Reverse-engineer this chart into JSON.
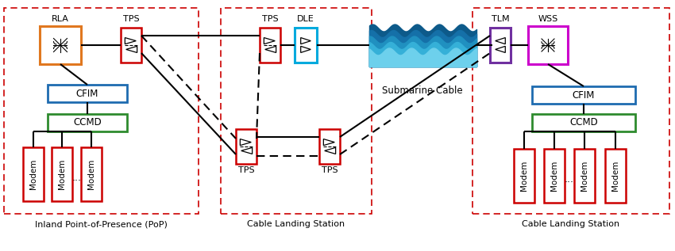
{
  "fig_width": 8.5,
  "fig_height": 3.17,
  "dpi": 100,
  "red": "#cc0000",
  "orange": "#e07820",
  "blue": "#1e6bb0",
  "green": "#2e8b2e",
  "purple": "#7030a0",
  "magenta": "#cc00cc",
  "cyan": "#00aadd",
  "inland_label": "Inland Point-of-Presence (PoP)",
  "cable_left_label": "Cable Landing Station",
  "cable_right_label": "Cable Landing Station",
  "submarine_label": "Submarine Cable"
}
